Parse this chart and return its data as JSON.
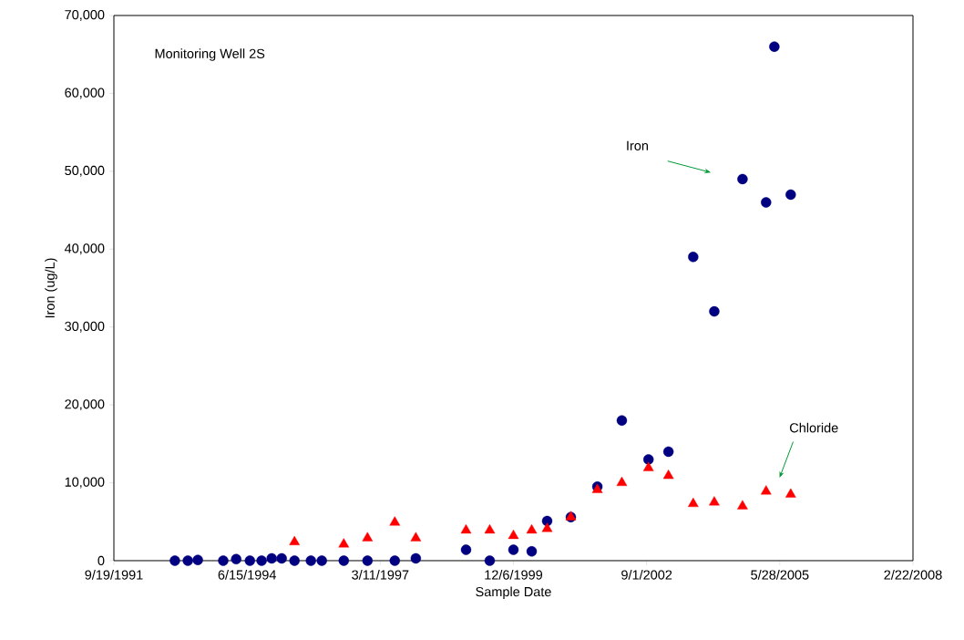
{
  "chart_data": {
    "type": "scatter",
    "xlabel": "Sample Date",
    "ylabel": "Iron (ug/L)",
    "annotations": [
      "Monitoring Well 2S",
      "Iron",
      "Chloride"
    ],
    "xlim": [
      "1991-09-19",
      "2008-02-22"
    ],
    "xticks": [
      {
        "value": "1991-09-19",
        "label": "9/19/1991"
      },
      {
        "value": "1994-06-15",
        "label": "6/15/1994"
      },
      {
        "value": "1997-03-11",
        "label": "3/11/1997"
      },
      {
        "value": "1999-12-06",
        "label": "12/6/1999"
      },
      {
        "value": "2002-09-01",
        "label": "9/1/2002"
      },
      {
        "value": "2005-05-28",
        "label": "5/28/2005"
      },
      {
        "value": "2008-02-22",
        "label": "2/22/2008"
      }
    ],
    "ylim": [
      0,
      70000
    ],
    "yticks": [
      0,
      {
        "value": 10000,
        "label": "10,000"
      },
      {
        "value": 20000,
        "label": "20,000"
      },
      {
        "value": 30000,
        "label": "30,000"
      },
      {
        "value": 40000,
        "label": "40,000"
      },
      {
        "value": 50000,
        "label": "50,000"
      },
      {
        "value": 60000,
        "label": "60,000"
      },
      {
        "value": 70000,
        "label": "70,000"
      }
    ],
    "grid": false,
    "legend": false,
    "series": [
      {
        "color": "#000080",
        "marker": "circle",
        "x": [
          "1992-12-20",
          "1993-03-27",
          "1993-06-10",
          "1993-12-18",
          "1994-03-25",
          "1994-07-06",
          "1994-10-02",
          "1994-12-17",
          "1995-03-02",
          "1995-06-06",
          "1995-10-07",
          "1995-12-28",
          "1996-06-10",
          "1996-12-05",
          "1997-06-28",
          "1997-12-03",
          "1998-12-15",
          "1999-06-11",
          "1999-12-06",
          "2000-04-21",
          "2000-08-15",
          "2001-02-09",
          "2001-08-27",
          "2002-02-27",
          "2002-09-15",
          "2003-02-12",
          "2003-08-17",
          "2004-01-22",
          "2004-08-21",
          "2005-02-14",
          "2005-04-17",
          "2005-08-18"
        ],
        "values": [
          0,
          0,
          100,
          0,
          200,
          0,
          0,
          300,
          300,
          0,
          0,
          0,
          0,
          0,
          0,
          300,
          1400,
          0,
          1400,
          1200,
          5100,
          5600,
          9500,
          18000,
          13000,
          14000,
          39000,
          32000,
          49000,
          46000,
          66000,
          47000
        ]
      },
      {
        "color": "#ff0000",
        "marker": "triangle",
        "x": [
          "1995-06-06",
          "1996-06-10",
          "1996-12-05",
          "1997-06-28",
          "1997-12-03",
          "1998-12-15",
          "1999-06-11",
          "1999-12-06",
          "2000-04-21",
          "2000-08-15",
          "2001-02-09",
          "2001-08-27",
          "2002-02-27",
          "2002-09-15",
          "2003-02-12",
          "2003-08-17",
          "2004-01-22",
          "2004-08-21",
          "2005-02-14",
          "2005-08-18"
        ],
        "values": [
          2400,
          2100,
          2900,
          4900,
          2900,
          3900,
          3900,
          3200,
          3900,
          4100,
          5600,
          9100,
          10000,
          11900,
          10900,
          7300,
          7500,
          7000,
          8900,
          8500
        ]
      }
    ]
  }
}
